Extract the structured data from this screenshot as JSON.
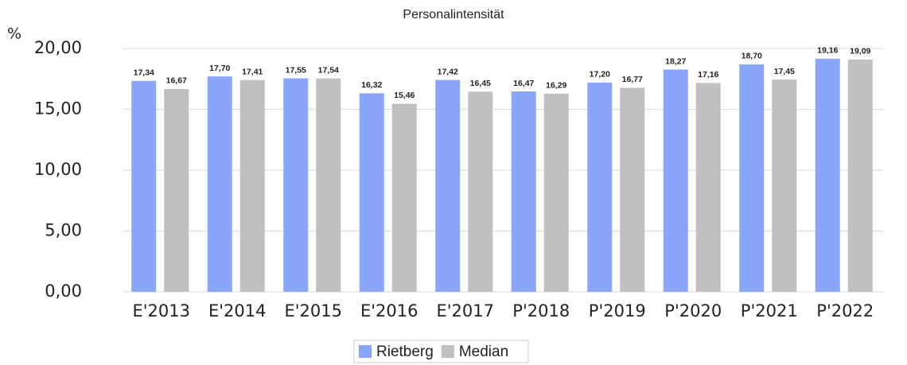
{
  "chart_data": {
    "type": "bar",
    "title": "Personalintensität",
    "y_label": "%",
    "categories": [
      "E'2013",
      "E'2014",
      "E'2015",
      "E'2016",
      "E'2017",
      "P'2018",
      "P'2019",
      "P'2020",
      "P'2021",
      "P'2022"
    ],
    "series": [
      {
        "name": "Rietberg",
        "color": "#8aa6fa",
        "values": [
          17.34,
          17.7,
          17.55,
          16.32,
          17.42,
          16.47,
          17.2,
          18.27,
          18.7,
          19.16
        ],
        "value_labels": [
          "17,34",
          "17,70",
          "17,55",
          "16,32",
          "17,42",
          "16,47",
          "17,20",
          "18,27",
          "18,70",
          "19,16"
        ]
      },
      {
        "name": "Median",
        "color": "#c0c0c0",
        "values": [
          16.67,
          17.41,
          17.54,
          15.46,
          16.45,
          16.29,
          16.77,
          17.16,
          17.45,
          19.09
        ],
        "value_labels": [
          "16,67",
          "17,41",
          "17,54",
          "15,46",
          "16,45",
          "16,29",
          "16,77",
          "17,16",
          "17,45",
          "19,09"
        ]
      }
    ],
    "ylim": [
      0,
      20
    ],
    "yticks": [
      {
        "value": 0,
        "label": "0,00"
      },
      {
        "value": 5,
        "label": "5,00"
      },
      {
        "value": 10,
        "label": "10,00"
      },
      {
        "value": 15,
        "label": "15,00"
      },
      {
        "value": 20,
        "label": "20,00"
      }
    ],
    "grid": true,
    "legend": "bottom"
  }
}
